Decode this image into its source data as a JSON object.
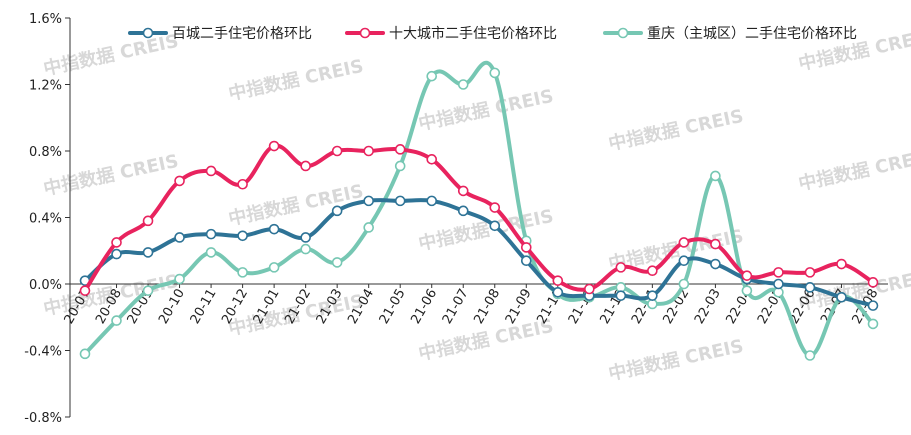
{
  "chart_data": {
    "type": "line",
    "categories": [
      "20-07",
      "20-08",
      "20-09",
      "20-10",
      "20-11",
      "20-12",
      "21-01",
      "21-02",
      "21-03",
      "21-04",
      "21-05",
      "21-06",
      "21-07",
      "21-08",
      "21-09",
      "21-10",
      "21-11",
      "21-12",
      "22-01",
      "22-02",
      "22-03",
      "22-04",
      "22-05",
      "22-06",
      "22-07",
      "22-08"
    ],
    "y_ticks": [
      "1.6%",
      "1.2%",
      "0.8%",
      "0.4%",
      "0.0%",
      "-0.4%",
      "-0.8%"
    ],
    "ylim": [
      -0.8,
      1.6
    ],
    "grid": false,
    "legend_position": "top",
    "series": [
      {
        "name": "百城二手住宅价格环比",
        "color": "#2e7396",
        "values": [
          0.02,
          0.18,
          0.19,
          0.28,
          0.3,
          0.29,
          0.33,
          0.28,
          0.44,
          0.5,
          0.5,
          0.5,
          0.44,
          0.35,
          0.14,
          -0.05,
          -0.07,
          -0.07,
          -0.07,
          0.14,
          0.12,
          0.03,
          0.0,
          -0.02,
          -0.08,
          -0.13
        ]
      },
      {
        "name": "十大城市二手住宅价格环比",
        "color": "#e8235e",
        "values": [
          -0.04,
          0.25,
          0.38,
          0.62,
          0.68,
          0.6,
          0.83,
          0.71,
          0.8,
          0.8,
          0.81,
          0.75,
          0.56,
          0.46,
          0.22,
          0.02,
          -0.03,
          0.1,
          0.08,
          0.25,
          0.24,
          0.05,
          0.07,
          0.07,
          0.12,
          0.01
        ]
      },
      {
        "name": "重庆（主城区）二手住宅价格环比",
        "color": "#76c7b3",
        "values": [
          -0.42,
          -0.22,
          -0.04,
          0.03,
          0.19,
          0.07,
          0.1,
          0.21,
          0.13,
          0.34,
          0.71,
          1.25,
          1.2,
          1.27,
          0.26,
          -0.06,
          -0.08,
          -0.02,
          -0.12,
          0.0,
          0.65,
          -0.04,
          -0.05,
          -0.43,
          -0.08,
          -0.24
        ]
      }
    ],
    "watermark": "中指数据 CREIS"
  }
}
